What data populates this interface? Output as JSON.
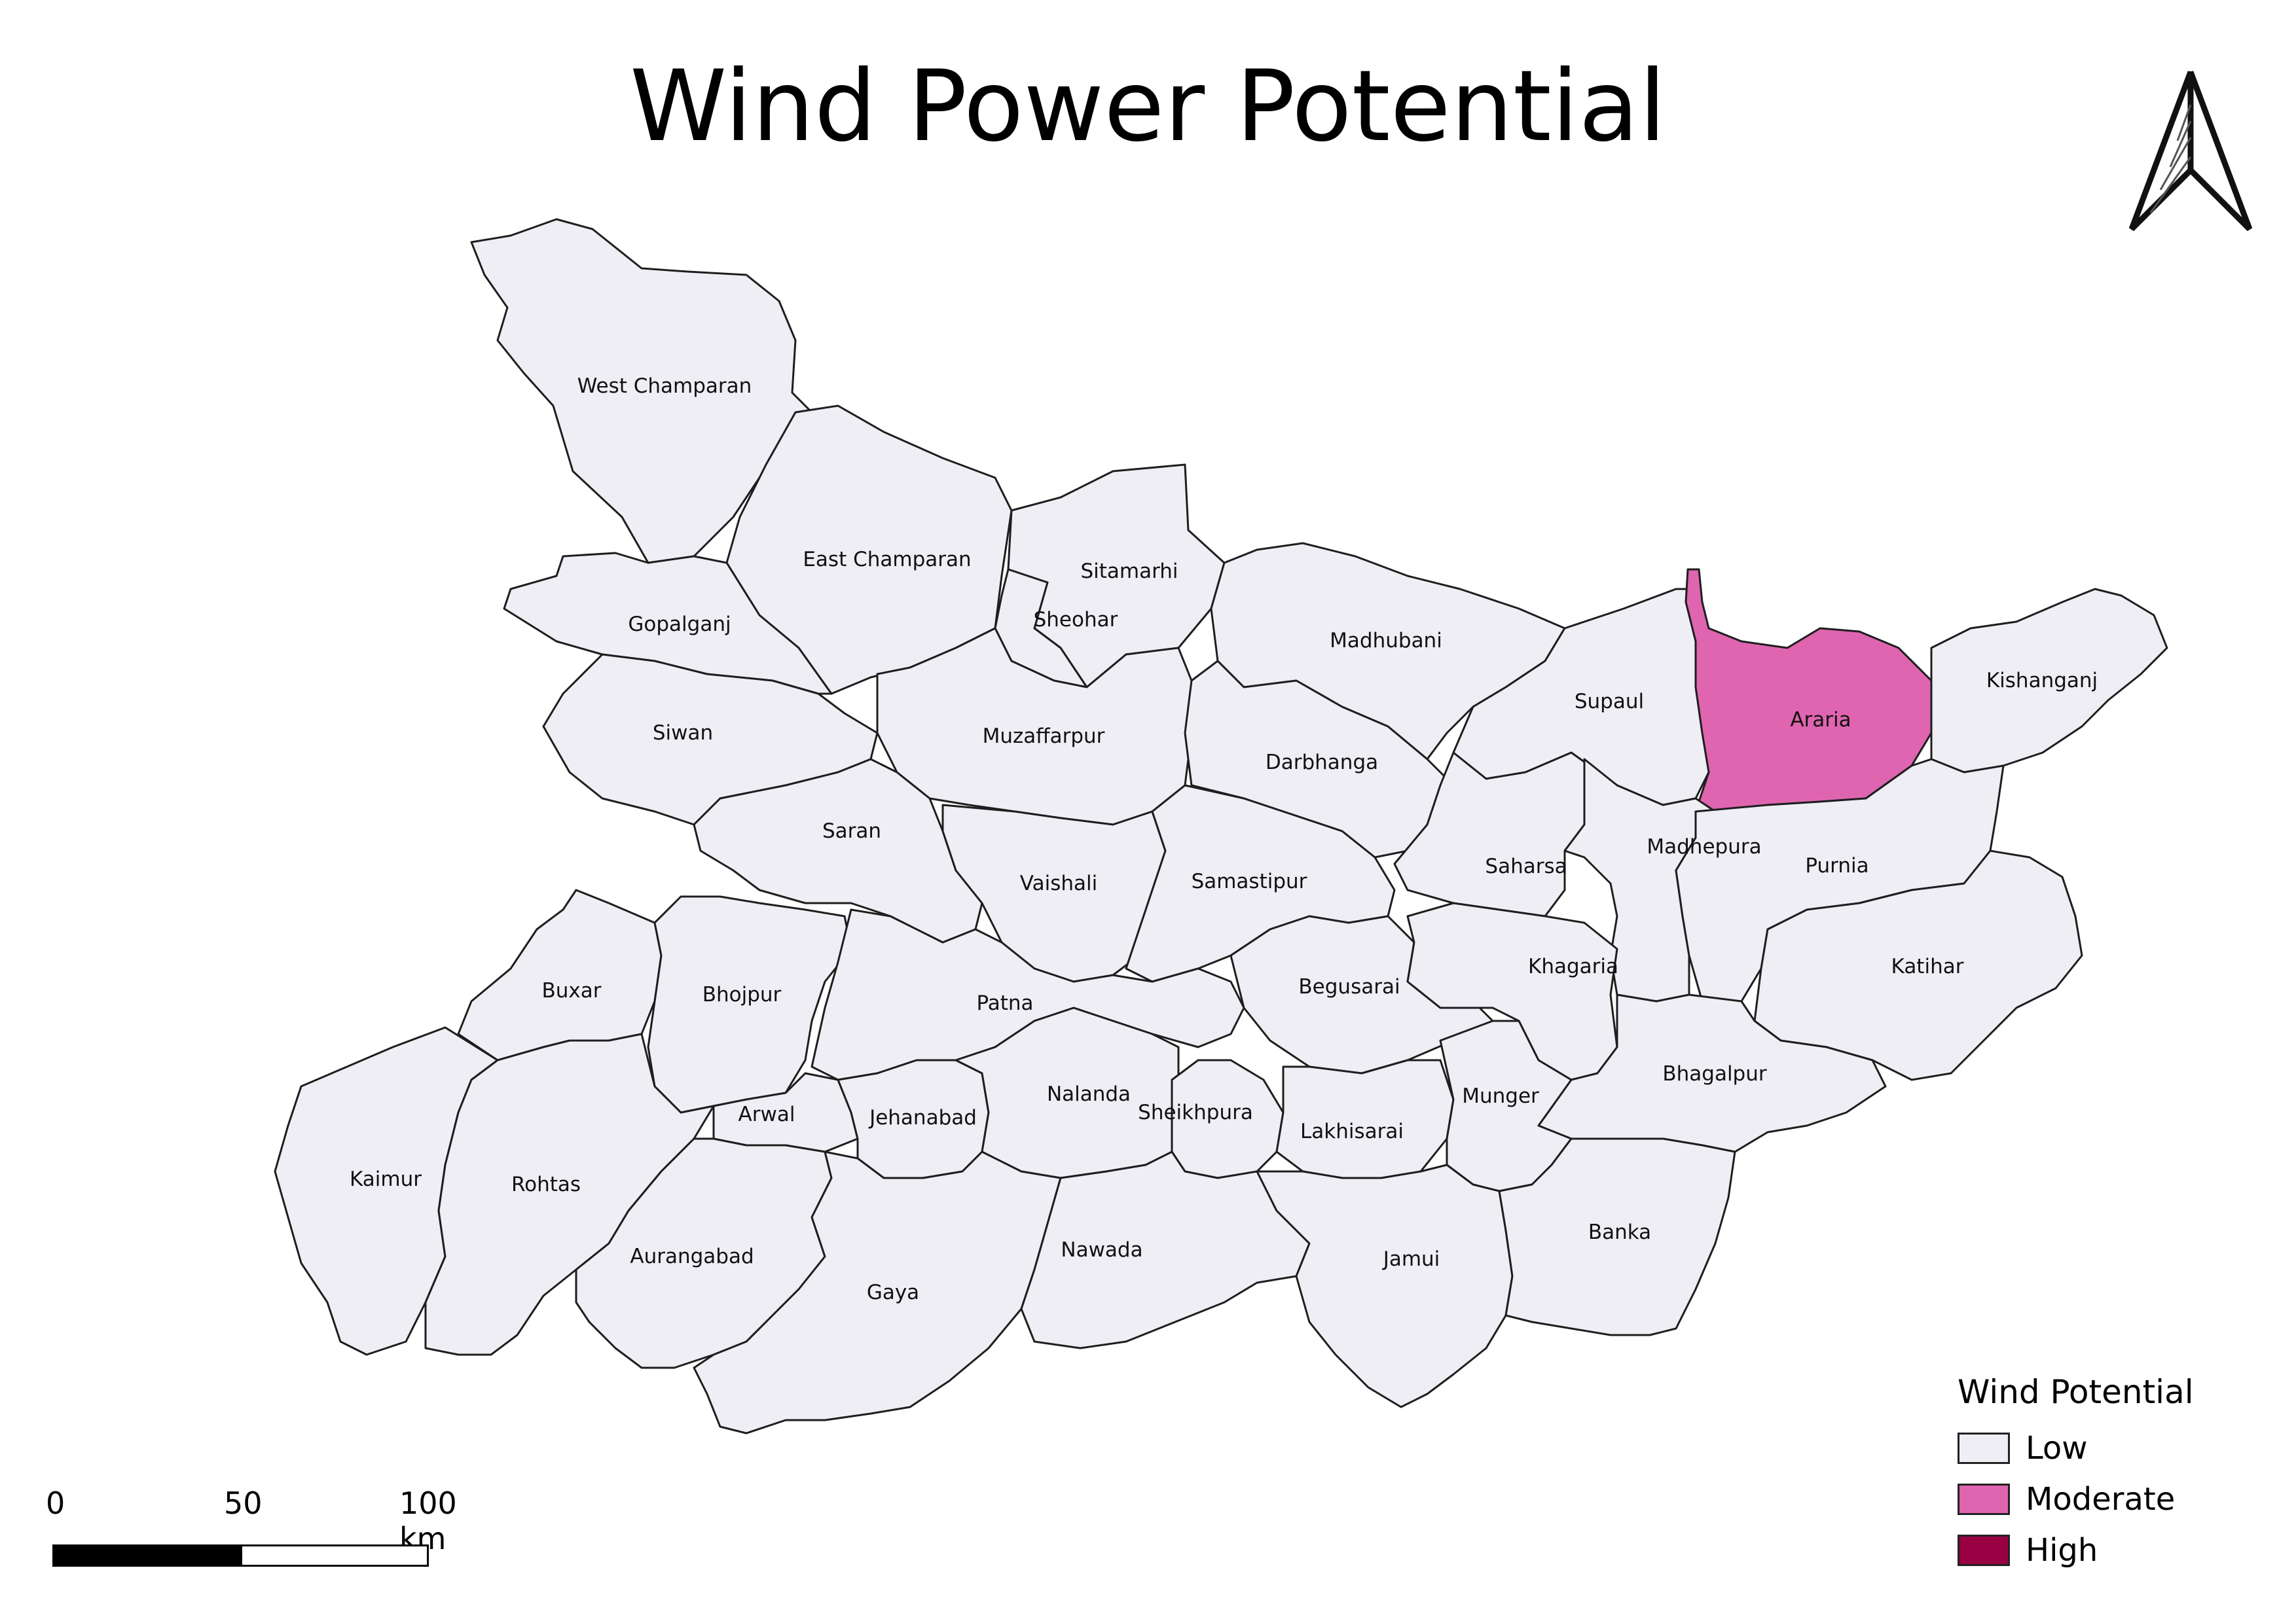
{
  "title": "Wind Power Potential",
  "legend": {
    "title": "Wind Potential",
    "items": [
      {
        "label": "Low",
        "color": "#f0eef5"
      },
      {
        "label": "Moderate",
        "color": "#df65b0"
      },
      {
        "label": "High",
        "color": "#980043"
      }
    ]
  },
  "scale_bar": {
    "labels": [
      "0",
      "50",
      "100 km"
    ]
  },
  "north_arrow": {
    "icon": "north-arrow-icon"
  },
  "districts": [
    {
      "name": "West Champaran",
      "class": "Low"
    },
    {
      "name": "East Champaran",
      "class": "Low"
    },
    {
      "name": "Sitamarhi",
      "class": "Low"
    },
    {
      "name": "Sheohar",
      "class": "Low"
    },
    {
      "name": "Gopalganj",
      "class": "Low"
    },
    {
      "name": "Madhubani",
      "class": "Low"
    },
    {
      "name": "Supaul",
      "class": "Low"
    },
    {
      "name": "Araria",
      "class": "Moderate"
    },
    {
      "name": "Kishanganj",
      "class": "Low"
    },
    {
      "name": "Siwan",
      "class": "Low"
    },
    {
      "name": "Muzaffarpur",
      "class": "Low"
    },
    {
      "name": "Darbhanga",
      "class": "Low"
    },
    {
      "name": "Saran",
      "class": "Low"
    },
    {
      "name": "Vaishali",
      "class": "Low"
    },
    {
      "name": "Samastipur",
      "class": "Low"
    },
    {
      "name": "Saharsa",
      "class": "Low"
    },
    {
      "name": "Madhepura",
      "class": "Low"
    },
    {
      "name": "Purnia",
      "class": "Low"
    },
    {
      "name": "Katihar",
      "class": "Low"
    },
    {
      "name": "Buxar",
      "class": "Low"
    },
    {
      "name": "Bhojpur",
      "class": "Low"
    },
    {
      "name": "Patna",
      "class": "Low"
    },
    {
      "name": "Begusarai",
      "class": "Low"
    },
    {
      "name": "Khagaria",
      "class": "Low"
    },
    {
      "name": "Bhagalpur",
      "class": "Low"
    },
    {
      "name": "Kaimur",
      "class": "Low"
    },
    {
      "name": "Rohtas",
      "class": "Low"
    },
    {
      "name": "Arwal",
      "class": "Low"
    },
    {
      "name": "Jehanabad",
      "class": "Low"
    },
    {
      "name": "Nalanda",
      "class": "Low"
    },
    {
      "name": "Sheikhpura",
      "class": "Low"
    },
    {
      "name": "Lakhisarai",
      "class": "Low"
    },
    {
      "name": "Munger",
      "class": "Low"
    },
    {
      "name": "Aurangabad",
      "class": "Low"
    },
    {
      "name": "Gaya",
      "class": "Low"
    },
    {
      "name": "Nawada",
      "class": "Low"
    },
    {
      "name": "Jamui",
      "class": "Low"
    },
    {
      "name": "Banka",
      "class": "Low"
    }
  ]
}
